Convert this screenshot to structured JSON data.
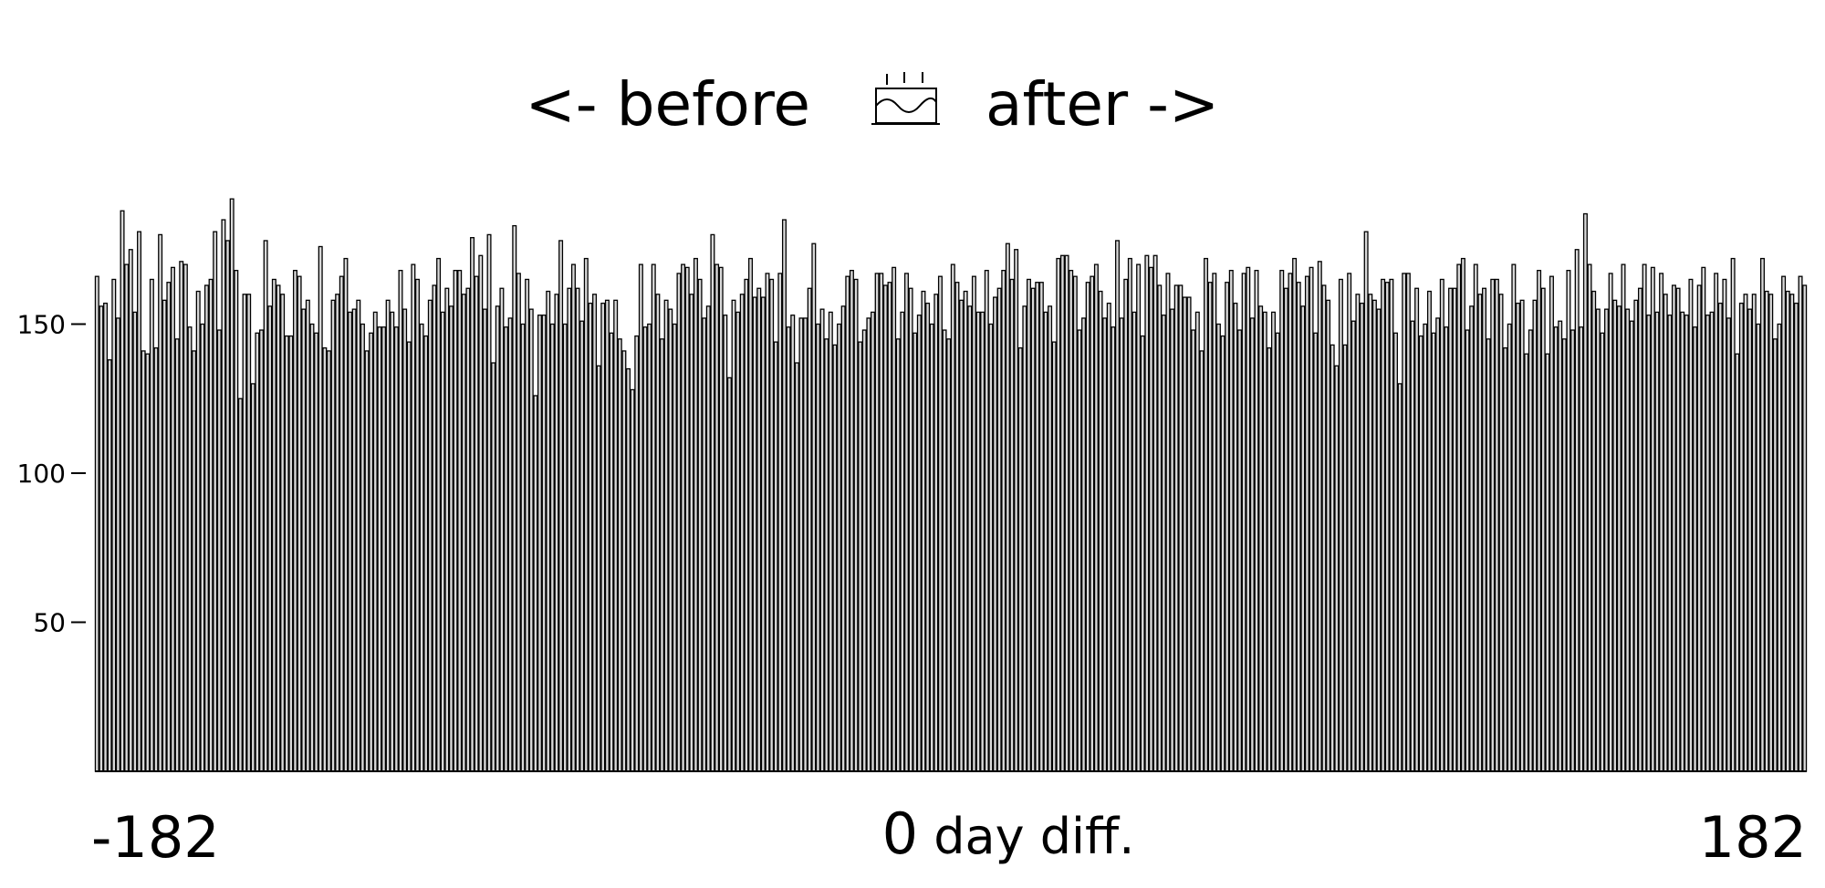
{
  "chart_data": {
    "type": "bar",
    "title_before": "<- before",
    "title_after": "after ->",
    "title_icon": "birthday-cake-icon",
    "xlabel": "day diff.",
    "x_range": [
      -182,
      182
    ],
    "xticks": [
      -182,
      0,
      182
    ],
    "xtick_labels": [
      "-182",
      "0",
      "182"
    ],
    "ylim": [
      0,
      200
    ],
    "yticks": [
      50,
      100,
      150
    ],
    "ytick_labels": [
      "50",
      "100",
      "150"
    ],
    "grid": false,
    "series": [
      {
        "values": [
          166,
          156,
          157,
          138,
          165,
          152,
          188,
          170,
          175,
          154,
          181,
          141,
          140,
          165,
          142,
          180,
          158,
          164,
          169,
          145,
          171,
          170,
          149,
          141,
          161,
          150,
          163,
          165,
          181,
          148,
          185,
          178,
          192,
          168,
          125,
          160,
          160,
          130,
          147,
          148,
          178,
          156,
          165,
          163,
          160,
          146,
          146,
          168,
          166,
          155,
          158,
          150,
          147,
          176,
          142,
          141,
          158,
          160,
          166,
          172,
          154,
          155,
          158,
          150,
          141,
          147,
          154,
          149,
          149,
          158,
          154,
          149,
          168,
          155,
          144,
          170,
          165,
          150,
          146,
          158,
          163,
          172,
          154,
          162,
          156,
          168,
          168,
          160,
          162,
          179,
          166,
          173,
          155,
          180,
          137,
          156,
          162,
          149,
          152,
          183,
          167,
          150,
          165,
          155,
          126,
          153,
          153,
          161,
          150,
          160,
          178,
          150,
          162,
          170,
          162,
          151,
          172,
          157,
          160,
          136,
          157,
          158,
          147,
          158,
          145,
          141,
          135,
          128,
          146,
          170,
          149,
          150,
          170,
          160,
          145,
          158,
          155,
          150,
          167,
          170,
          169,
          160,
          172,
          165,
          152,
          156,
          180,
          170,
          169,
          153,
          132,
          158,
          154,
          160,
          165,
          172,
          159,
          162,
          159,
          167,
          165,
          144,
          167,
          185,
          149,
          153,
          137,
          152,
          152,
          162,
          177,
          150,
          155,
          145,
          154,
          143,
          150,
          156,
          166,
          168,
          165,
          144,
          148,
          152,
          154,
          167,
          167,
          163,
          164,
          169,
          145,
          154,
          167,
          162,
          147,
          153,
          161,
          157,
          150,
          160,
          166,
          148,
          145,
          170,
          164,
          158,
          161,
          156,
          166,
          154,
          154,
          168,
          150,
          159,
          162,
          168,
          177,
          165,
          175,
          142,
          156,
          165,
          162,
          164,
          164,
          154,
          156,
          144,
          172,
          173,
          173,
          168,
          166,
          148,
          152,
          164,
          166,
          170,
          161,
          152,
          157,
          149,
          178,
          152,
          165,
          172,
          154,
          170,
          146,
          173,
          169,
          173,
          163,
          153,
          167,
          155,
          163,
          163,
          159,
          159,
          148,
          154,
          141,
          172,
          164,
          167,
          150,
          146,
          164,
          168,
          157,
          148,
          167,
          169,
          152,
          168,
          156,
          154,
          142,
          154,
          147,
          168,
          162,
          167,
          172,
          164,
          156,
          166,
          169,
          147,
          171,
          163,
          158,
          143,
          136,
          165,
          143,
          167,
          151,
          160,
          157,
          181,
          160,
          158,
          155,
          165,
          164,
          165,
          147,
          130,
          167,
          167,
          151,
          162,
          146,
          150,
          161,
          147,
          152,
          165,
          149,
          162,
          162,
          170,
          172,
          148,
          156,
          170,
          160,
          162,
          145,
          165,
          165,
          160,
          142,
          150,
          170,
          157,
          158,
          140,
          148,
          158,
          168,
          162,
          140,
          166,
          149,
          151,
          145,
          168,
          148,
          175,
          149,
          187,
          170,
          161,
          155,
          147,
          155,
          167,
          158,
          156,
          170,
          155,
          151,
          158,
          162,
          170,
          153,
          169,
          154,
          167,
          160,
          153,
          163,
          162,
          154,
          153,
          165,
          149,
          163,
          169,
          153,
          154,
          167,
          157,
          165,
          152,
          172,
          140,
          157,
          160,
          155,
          160,
          150,
          172,
          161,
          160,
          145,
          150,
          166,
          161,
          160,
          157,
          166,
          163
        ]
      }
    ]
  }
}
